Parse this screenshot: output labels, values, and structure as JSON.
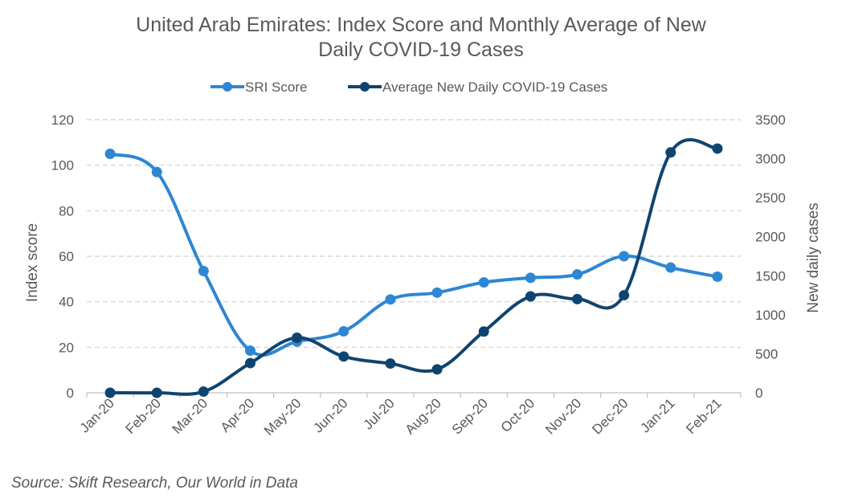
{
  "chart_data": {
    "type": "line",
    "title": "United Arab Emirates: Index Score and Monthly Average of New Daily COVID-19 Cases",
    "title_lines": [
      "United Arab Emirates: Index Score and Monthly Average of New",
      "Daily COVID-19 Cases"
    ],
    "categories": [
      "Jan-20",
      "Feb-20",
      "Mar-20",
      "Apr-20",
      "May-20",
      "Jun-20",
      "Jul-20",
      "Aug-20",
      "Sep-20",
      "Oct-20",
      "Nov-20",
      "Dec-20",
      "Jan-21",
      "Feb-21"
    ],
    "series": [
      {
        "name": "SRI Score",
        "axis": "left",
        "color": "#2e86d4",
        "values": [
          105,
          97,
          53.5,
          18.5,
          22.5,
          27,
          41,
          44,
          48.5,
          50.5,
          52,
          60,
          55,
          51
        ]
      },
      {
        "name": "Average New Daily COVID-19 Cases",
        "axis": "right",
        "color": "#0f4470",
        "values": [
          0,
          0,
          15,
          380,
          705,
          465,
          375,
          300,
          785,
          1235,
          1200,
          1250,
          3080,
          3130
        ]
      }
    ],
    "ylabel_left": "Index score",
    "ylabel_right": "New daily cases",
    "ylim_left": [
      0,
      120
    ],
    "yticks_left": [
      0,
      20,
      40,
      60,
      80,
      100,
      120
    ],
    "ylim_right": [
      0,
      3500
    ],
    "yticks_right": [
      0,
      500,
      1000,
      1500,
      2000,
      2500,
      3000,
      3500
    ],
    "grid": true,
    "legend_position": "top-center",
    "smooth": true
  },
  "source": "Source: Skift Research, Our World in Data"
}
